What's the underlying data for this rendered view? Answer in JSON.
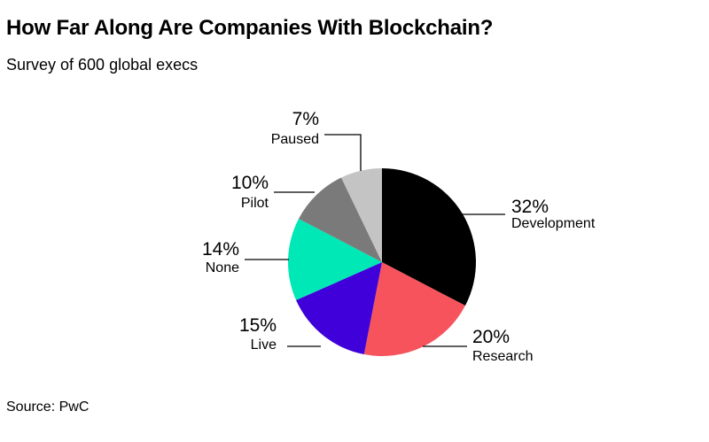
{
  "chart_data": {
    "type": "pie",
    "title": "How Far Along Are Companies With Blockchain?",
    "subtitle": "Survey of 600 global execs",
    "source": "Source: PwC",
    "slices": [
      {
        "label": "Development",
        "value": 32,
        "value_label": "32%",
        "color": "#000000"
      },
      {
        "label": "Research",
        "value": 20,
        "value_label": "20%",
        "color": "#f6535d"
      },
      {
        "label": "Live",
        "value": 15,
        "value_label": "15%",
        "color": "#3f00d9"
      },
      {
        "label": "None",
        "value": 14,
        "value_label": "14%",
        "color": "#00e8b5"
      },
      {
        "label": "Pilot",
        "value": 10,
        "value_label": "10%",
        "color": "#7a7a7a"
      },
      {
        "label": "Paused",
        "value": 7,
        "value_label": "7%",
        "color": "#c4c4c4"
      }
    ]
  }
}
